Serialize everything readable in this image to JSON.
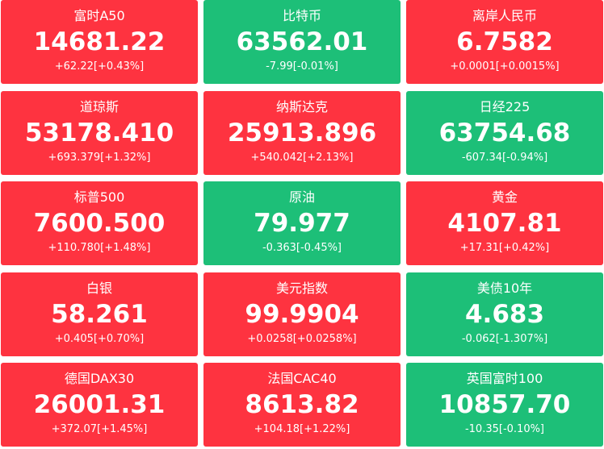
{
  "tiles": [
    {
      "name": "富时A50",
      "price": "14681.22",
      "change": "+62.22[+0.43%]"
    },
    {
      "name": "比特币",
      "price": "63562.01",
      "change": "-7.99[-0.01%]"
    },
    {
      "name": "离岸人民币",
      "price": "6.7582",
      "change": "+0.0001[+0.0015%]"
    },
    {
      "name": "道琼斯",
      "price": "53178.410",
      "change": "+693.379[+1.32%]"
    },
    {
      "name": "纳斯达克",
      "price": "25913.896",
      "change": "+540.042[+2.13%]"
    },
    {
      "name": "日经225",
      "price": "63754.68",
      "change": "-607.34[-0.94%]"
    },
    {
      "name": "标普500",
      "price": "7600.500",
      "change": "+110.780[+1.48%]"
    },
    {
      "name": "原油",
      "price": "79.977",
      "change": "-0.363[-0.45%]"
    },
    {
      "name": "黄金",
      "price": "4107.81",
      "change": "+17.31[+0.42%]"
    },
    {
      "name": "白银",
      "price": "58.261",
      "change": "+0.405[+0.70%]"
    },
    {
      "name": "美元指数",
      "price": "99.9904",
      "change": "+0.0258[+0.0258%]"
    },
    {
      "name": "美债10年",
      "price": "4.683",
      "change": "-0.062[-1.307%]"
    },
    {
      "name": "德国DAX30",
      "price": "26001.31",
      "change": "+372.07[+1.45%]"
    },
    {
      "name": "法国CAC40",
      "price": "8613.82",
      "change": "+104.18[+1.22%]"
    },
    {
      "name": "英国富时100",
      "price": "10857.70",
      "change": "-10.35[-0.10%]"
    }
  ]
}
